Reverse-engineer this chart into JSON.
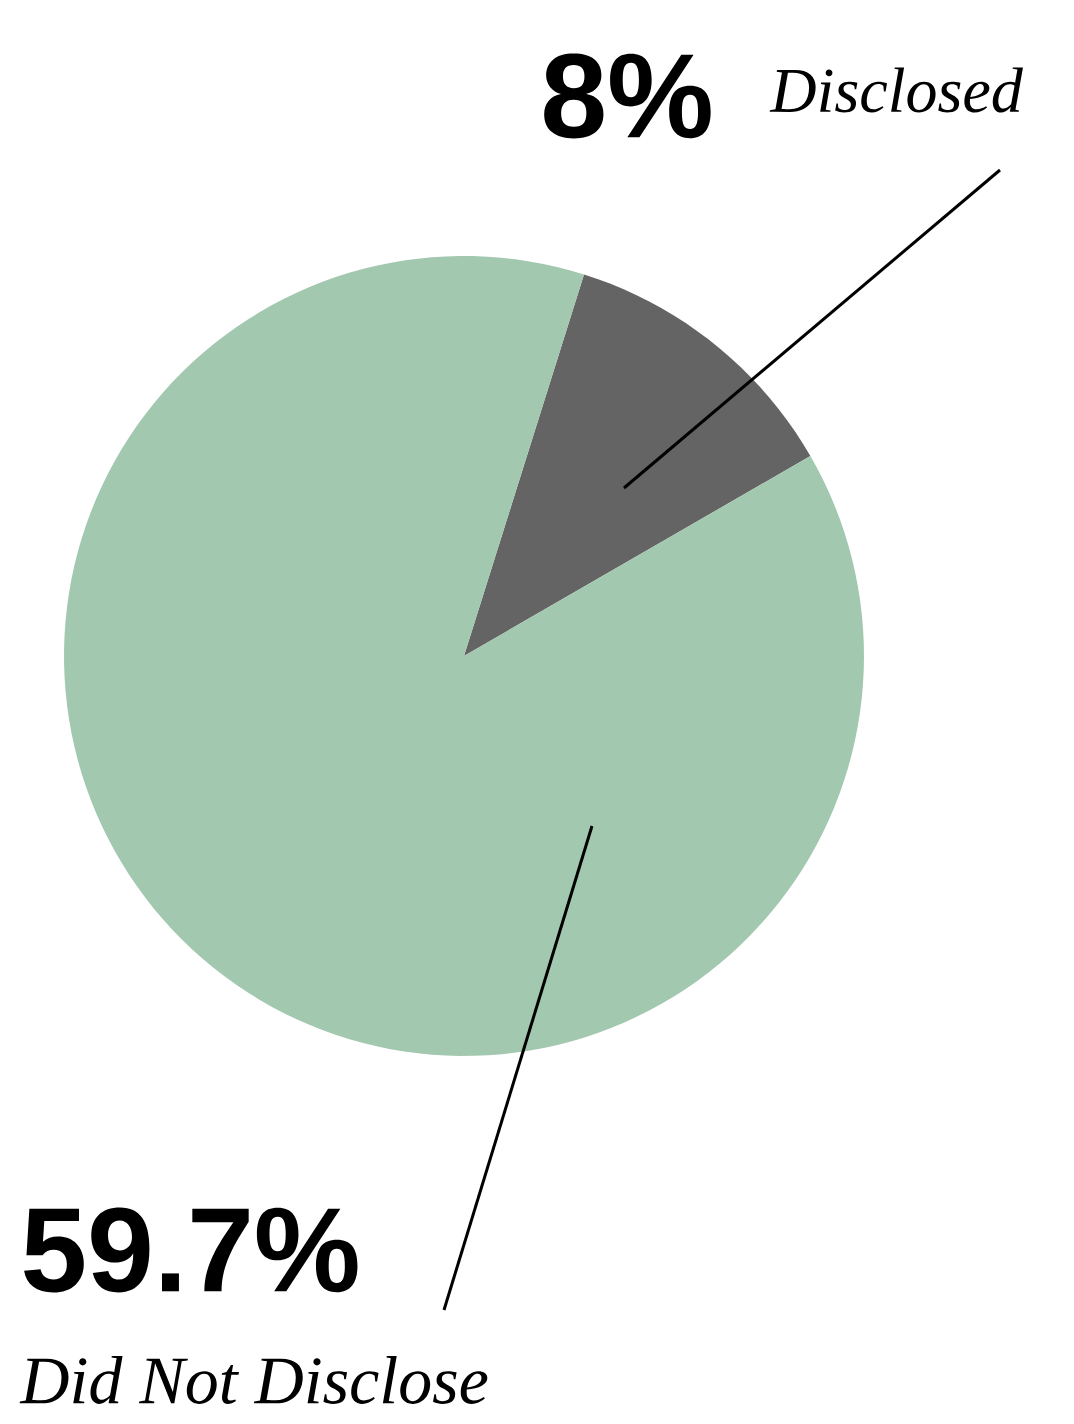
{
  "chart_data": {
    "type": "pie",
    "categories": [
      "Disclosed",
      "Did Not Disclose"
    ],
    "values": [
      8,
      59.7
    ],
    "colors": [
      "#646464",
      "#a3c8b0"
    ],
    "value_labels": [
      "8%",
      "59.7%"
    ]
  }
}
